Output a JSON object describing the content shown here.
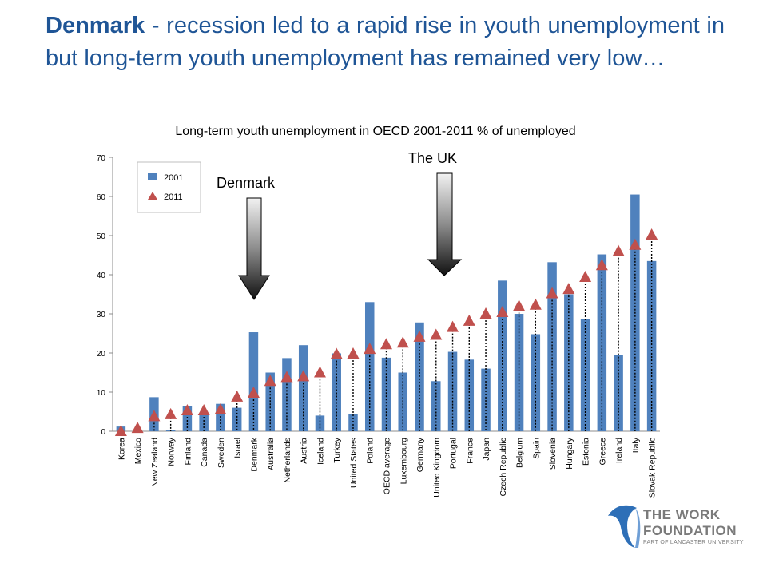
{
  "slide": {
    "title_bold": "Denmark",
    "title_rest": " - recession led to a rapid rise in youth unemployment in but long-term youth unemployment has remained very low…"
  },
  "callouts": {
    "denmark": "Denmark",
    "uk": "The UK"
  },
  "logo": {
    "line1": "THE WORK",
    "line2": "FOUNDATION",
    "line3": "PART OF LANCASTER UNIVERSITY"
  },
  "colors": {
    "bar": "#4f81bd",
    "marker": "#c0504d",
    "title": "#1f5596"
  },
  "chart_data": {
    "type": "bar",
    "title": "Long-term youth unemployment in OECD 2001-2011 % of unemployed",
    "categories": [
      "Korea",
      "Mexico",
      "New Zealand",
      "Norway",
      "Finland",
      "Canada",
      "Sweden",
      "Israel",
      "Denmark",
      "Australia",
      "Netherlands",
      "Austria",
      "Iceland",
      "Turkey",
      "United States",
      "Poland",
      "OECD average",
      "Luxembourg",
      "Germany",
      "United Kingdom",
      "Portugal",
      "France",
      "Japan",
      "Czech Republic",
      "Belgium",
      "Spain",
      "Slovenia",
      "Hungary",
      "Estonia",
      "Greece",
      "Ireland",
      "Italy",
      "Slovak Republic"
    ],
    "series": [
      {
        "name": "2001",
        "kind": "bar",
        "values": [
          1.2,
          0.2,
          8.7,
          0.3,
          6.5,
          4.3,
          7,
          6,
          25.3,
          15,
          18.7,
          22,
          4,
          19.9,
          4.3,
          33,
          18.8,
          15,
          27.8,
          12.8,
          20.3,
          18.3,
          16,
          38.5,
          30,
          24.8,
          43.2,
          35,
          28.7,
          45.2,
          19.5,
          60.5,
          43.5
        ]
      },
      {
        "name": "2011",
        "kind": "marker",
        "values": [
          0,
          0.8,
          3.8,
          4.3,
          5.3,
          5.3,
          5.5,
          8.8,
          9.8,
          12.8,
          13.8,
          14,
          15,
          19.7,
          19.8,
          21,
          22.2,
          22.6,
          24.1,
          24.6,
          26.6,
          28.2,
          30,
          30.4,
          32,
          32.3,
          35.2,
          36.3,
          39.4,
          42.4,
          46,
          47.6,
          50.2
        ]
      }
    ],
    "ylim": [
      0,
      70
    ],
    "yticks": [
      0,
      10,
      20,
      30,
      40,
      50,
      60,
      70
    ],
    "legend": "top-left",
    "grid": false
  }
}
